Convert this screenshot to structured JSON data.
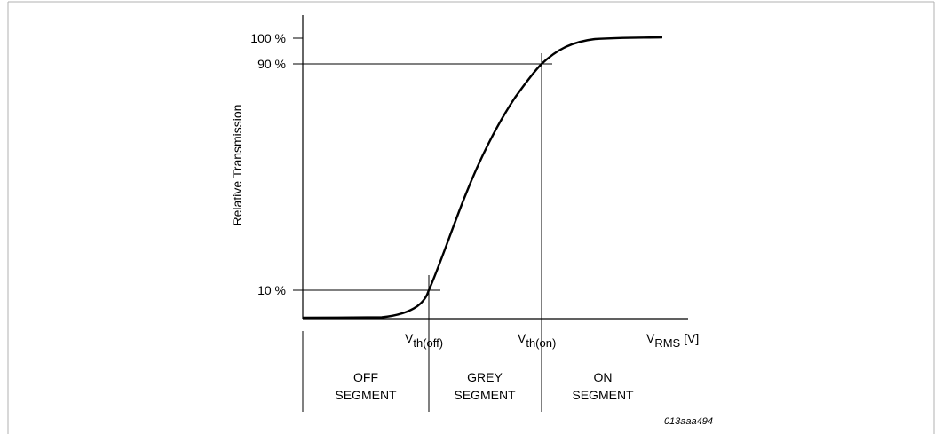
{
  "y_axis_label": "Relative Transmission",
  "y_ticks": {
    "t100": "100 %",
    "t90": "90 %",
    "t10": "10 %"
  },
  "x_axis": {
    "v_main": "V",
    "sub_rms": "RMS",
    "unit": " [V]"
  },
  "thresholds": {
    "off": {
      "main": "V",
      "sub": "th(off)"
    },
    "on": {
      "main": "V",
      "sub": "th(on)"
    }
  },
  "regions": {
    "off": {
      "line1": "OFF",
      "line2": "SEGMENT"
    },
    "grey": {
      "line1": "GREY",
      "line2": "SEGMENT"
    },
    "on": {
      "line1": "ON",
      "line2": "SEGMENT"
    }
  },
  "figure_code": "013aaa494"
}
